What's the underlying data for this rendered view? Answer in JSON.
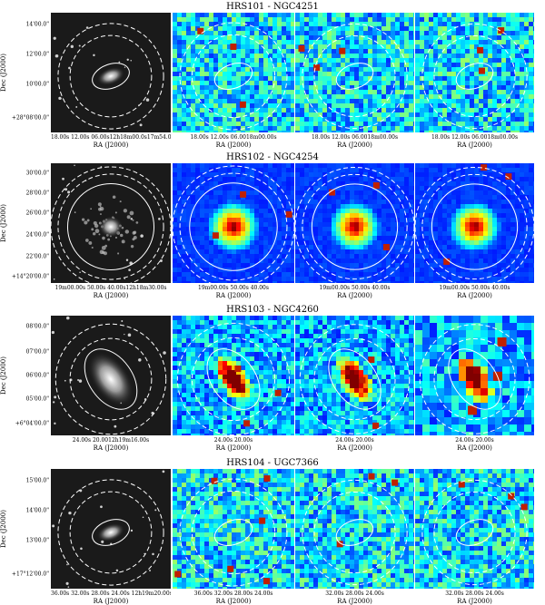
{
  "rows": [
    {
      "title": "HRS101 - NGC4251",
      "ylabel": "Dec (J2000)",
      "yticks": [
        "14'00.0\"",
        "12'00.0\"",
        "10'00.0\"",
        "+28°08'00.0\""
      ],
      "xticks": [
        "18.00s  12.00s  06.00s12h18m00.0s17m54.00s",
        "18.00s  12.00s  06.0018m00.00s",
        "18.00s  12.00s  06.0018m00.00s",
        "18.00s  12.00s  06.0018m00.00s"
      ],
      "xlabel": "RA (J2000)",
      "galaxy": "compact-elliptical",
      "maps": [
        "noise",
        "noise",
        "noise"
      ]
    },
    {
      "title": "HRS102 - NGC4254",
      "ylabel": "Dec (J2000)",
      "yticks": [
        "30'00.0\"",
        "28'00.0\"",
        "26'00.0\"",
        "24'00.0\"",
        "22'00.0\"",
        "+14°20'00.0\""
      ],
      "xticks": [
        "19m00.00s  50.00s  40.00s12h18m30.00s",
        "19m00.00s  50.00s  40.00s",
        "19m00.00s  50.00s  40.00s",
        "19m00.00s  50.00s  40.00s"
      ],
      "xlabel": "RA (J2000)",
      "galaxy": "spiral",
      "maps": [
        "bright-disk",
        "bright-disk",
        "bright-disk"
      ]
    },
    {
      "title": "HRS103 - NGC4260",
      "ylabel": "Dec (J2000)",
      "yticks": [
        "08'00.0\"",
        "07'00.0\"",
        "06'00.0\"",
        "05'00.0\"",
        "+6°04'00.0\""
      ],
      "xticks": [
        "24.00s    20.0012h19m16.00s",
        "24.00s    20.00s",
        "24.00s    20.00s",
        "24.00s    20.00s"
      ],
      "xlabel": "RA (J2000)",
      "galaxy": "inclined-disk",
      "maps": [
        "elongated",
        "elongated",
        "elongated-coarse"
      ]
    },
    {
      "title": "HRS104 - UGC7366",
      "ylabel": "Dec (J2000)",
      "yticks": [
        "15'00.0\"",
        "14'00.0\"",
        "13'00.0\"",
        "+17°12'00.0\""
      ],
      "xticks": [
        "36.00s  32.00s  28.00s  24.00s  12h19m20.00s",
        "36.00s  32.00s  28.00s  24.00s",
        "32.00s  28.00s  24.00s",
        "32.00s  28.00s  24.00s"
      ],
      "xlabel": "RA (J2000)",
      "galaxy": "compact-elliptical",
      "maps": [
        "noise-knots",
        "noise",
        "noise"
      ]
    }
  ],
  "colors": {
    "map_low": "#2040c0",
    "map_mid": "#40c0e0",
    "map_high": "#e0e040",
    "map_peak": "#a00000",
    "optical_bg": "#1a1a1a",
    "aperture": "#ffffff"
  }
}
